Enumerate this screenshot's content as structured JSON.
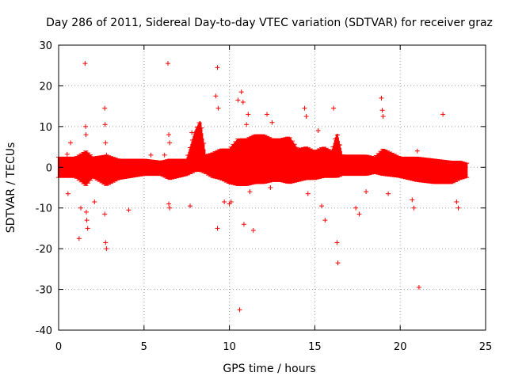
{
  "chart_data": {
    "type": "scatter",
    "title": "Day 286 of 2011, Sidereal Day-to-day VTEC variation (SDTVAR) for receiver graz",
    "xlabel": "GPS time / hours",
    "ylabel": "SDTVAR / TECUs",
    "xlim": [
      0,
      25
    ],
    "ylim": [
      -40,
      30
    ],
    "xticks": [
      "0",
      "5",
      "10",
      "15",
      "20",
      "25"
    ],
    "yticks": [
      "-40",
      "-30",
      "-20",
      "-10",
      "0",
      "10",
      "20",
      "30"
    ],
    "grid": true,
    "marker": "+",
    "color": "#ff0000",
    "series": [
      {
        "name": "SDTVAR",
        "band_envelope": [
          [
            0.0,
            -2.5,
            2.5
          ],
          [
            1.0,
            -2.5,
            2.5
          ],
          [
            1.6,
            -4.5,
            4.0
          ],
          [
            2.0,
            -2.5,
            2.5
          ],
          [
            2.8,
            -4.5,
            3.0
          ],
          [
            3.5,
            -3.0,
            2.0
          ],
          [
            5.0,
            -2.0,
            2.0
          ],
          [
            6.0,
            -2.0,
            1.5
          ],
          [
            6.5,
            -3.0,
            2.0
          ],
          [
            7.0,
            -2.5,
            2.0
          ],
          [
            7.5,
            -2.0,
            2.0
          ],
          [
            8.0,
            -1.0,
            9.0
          ],
          [
            8.3,
            -1.0,
            11.5
          ],
          [
            8.6,
            -1.5,
            3.0
          ],
          [
            9.0,
            -2.5,
            3.5
          ],
          [
            9.5,
            -3.0,
            4.5
          ],
          [
            10.0,
            -4.0,
            4.5
          ],
          [
            10.5,
            -4.5,
            7.0
          ],
          [
            11.0,
            -4.5,
            7.0
          ],
          [
            11.5,
            -4.0,
            8.0
          ],
          [
            12.0,
            -4.0,
            8.0
          ],
          [
            12.5,
            -3.5,
            7.0
          ],
          [
            13.0,
            -3.5,
            7.0
          ],
          [
            13.5,
            -4.0,
            7.5
          ],
          [
            14.0,
            -3.5,
            4.5
          ],
          [
            14.5,
            -3.0,
            5.0
          ],
          [
            15.0,
            -3.0,
            4.0
          ],
          [
            15.5,
            -2.5,
            5.0
          ],
          [
            16.0,
            -2.5,
            4.0
          ],
          [
            16.3,
            -2.5,
            8.5
          ],
          [
            16.6,
            -2.0,
            3.0
          ],
          [
            17.0,
            -2.0,
            3.0
          ],
          [
            18.0,
            -2.0,
            3.0
          ],
          [
            18.5,
            -1.5,
            2.5
          ],
          [
            19.0,
            -2.0,
            4.5
          ],
          [
            20.0,
            -2.5,
            2.5
          ],
          [
            21.0,
            -3.5,
            2.5
          ],
          [
            22.0,
            -4.0,
            2.0
          ],
          [
            23.0,
            -4.0,
            1.5
          ],
          [
            23.5,
            -3.0,
            1.5
          ],
          [
            23.9,
            -2.5,
            1.0
          ]
        ],
        "outliers": [
          [
            0.5,
            3.2
          ],
          [
            0.55,
            -6.5
          ],
          [
            0.7,
            6.0
          ],
          [
            1.2,
            -17.5
          ],
          [
            1.3,
            -10.0
          ],
          [
            1.55,
            25.5
          ],
          [
            1.58,
            10.0
          ],
          [
            1.6,
            8.0
          ],
          [
            1.62,
            -11.0
          ],
          [
            1.65,
            -13.0
          ],
          [
            1.7,
            -15.0
          ],
          [
            2.1,
            -8.5
          ],
          [
            2.7,
            14.5
          ],
          [
            2.72,
            10.5
          ],
          [
            2.75,
            6.0
          ],
          [
            2.7,
            -11.5
          ],
          [
            2.75,
            -18.5
          ],
          [
            2.8,
            -20.0
          ],
          [
            2.8,
            3.0
          ],
          [
            4.1,
            -10.5
          ],
          [
            5.4,
            3.0
          ],
          [
            6.2,
            3.0
          ],
          [
            6.4,
            25.5
          ],
          [
            6.45,
            8.0
          ],
          [
            6.5,
            6.0
          ],
          [
            6.45,
            -9.0
          ],
          [
            6.5,
            -10.0
          ],
          [
            7.8,
            8.5
          ],
          [
            7.7,
            -9.5
          ],
          [
            9.2,
            17.5
          ],
          [
            9.3,
            24.5
          ],
          [
            9.35,
            14.5
          ],
          [
            9.3,
            -15.0
          ],
          [
            9.7,
            -8.5
          ],
          [
            10.0,
            -9.0
          ],
          [
            10.1,
            -8.5
          ],
          [
            10.5,
            16.5
          ],
          [
            10.7,
            18.5
          ],
          [
            10.8,
            16.0
          ],
          [
            10.85,
            -14.0
          ],
          [
            10.6,
            -35.0
          ],
          [
            11.0,
            10.5
          ],
          [
            11.1,
            13.0
          ],
          [
            11.2,
            -6.0
          ],
          [
            11.4,
            -15.5
          ],
          [
            12.2,
            13.0
          ],
          [
            12.5,
            11.0
          ],
          [
            12.4,
            -5.0
          ],
          [
            14.4,
            14.5
          ],
          [
            14.5,
            12.5
          ],
          [
            14.6,
            -6.5
          ],
          [
            15.2,
            9.0
          ],
          [
            15.4,
            -9.5
          ],
          [
            15.6,
            -13.0
          ],
          [
            16.1,
            14.5
          ],
          [
            16.3,
            -18.5
          ],
          [
            16.35,
            -23.5
          ],
          [
            17.4,
            -10.0
          ],
          [
            17.6,
            -11.5
          ],
          [
            18.0,
            -6.0
          ],
          [
            18.9,
            17.0
          ],
          [
            18.95,
            14.0
          ],
          [
            19.0,
            12.5
          ],
          [
            19.3,
            -6.5
          ],
          [
            20.7,
            -8.0
          ],
          [
            20.8,
            -10.0
          ],
          [
            21.0,
            4.0
          ],
          [
            21.1,
            -29.5
          ],
          [
            22.5,
            13.0
          ],
          [
            23.3,
            -8.5
          ],
          [
            23.4,
            -10.0
          ]
        ]
      }
    ]
  }
}
